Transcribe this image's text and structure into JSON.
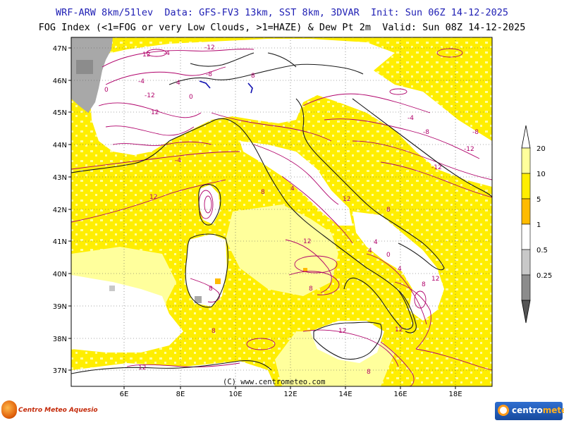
{
  "header": {
    "line1": "WRF-ARW 8km/51lev  Data: GFS-FV3 13km, SST 8km, 3DVAR  Init: Sun 06Z 14-12-2025",
    "line2": "FOG Index (<1=FOG or very Low Clouds, >1=HAZE) & Dew Pt 2m  Valid: Sun 08Z 14-12-2025"
  },
  "map": {
    "lon_labels": [
      "6E",
      "8E",
      "10E",
      "12E",
      "14E",
      "16E",
      "18E"
    ],
    "lat_labels": [
      "47N",
      "46N",
      "45N",
      "44N",
      "43N",
      "42N",
      "41N",
      "40N",
      "39N",
      "38N",
      "37N"
    ],
    "credit": "(C) www.centrometeo.com",
    "contour_labels": [
      "-4",
      "-12",
      "0",
      "-4",
      "-8",
      "-12",
      "12",
      "0",
      "4",
      "8",
      "-8",
      "-12",
      "-4",
      "-8",
      "-12",
      "12",
      "-4",
      "4",
      "8",
      "12",
      "4",
      "0",
      "8",
      "12",
      "4",
      "8",
      "12",
      "12",
      "8",
      "12",
      "8",
      "4",
      "8",
      "12",
      "12",
      "8"
    ]
  },
  "legend": {
    "levels": [
      {
        "label": "20",
        "color": "#ffff9c"
      },
      {
        "label": "10",
        "color": "#ffee00"
      },
      {
        "label": "5",
        "color": "#ffbb00"
      },
      {
        "label": "1",
        "color": "#ffffff"
      },
      {
        "label": "0.5",
        "color": "#c8c8c8"
      },
      {
        "label": "0.25",
        "color": "#8c8c8c"
      }
    ]
  },
  "colors": {
    "yellow": "#ffee00",
    "pale_yellow": "#ffff9c",
    "white": "#ffffff",
    "gray": "#a8a8a8",
    "contour": "#b0006a",
    "border": "#1a1a1a"
  },
  "logos": {
    "left_text": "Centro Meteo Aquesio",
    "right_text_a": "centro",
    "right_text_b": "meteo"
  }
}
